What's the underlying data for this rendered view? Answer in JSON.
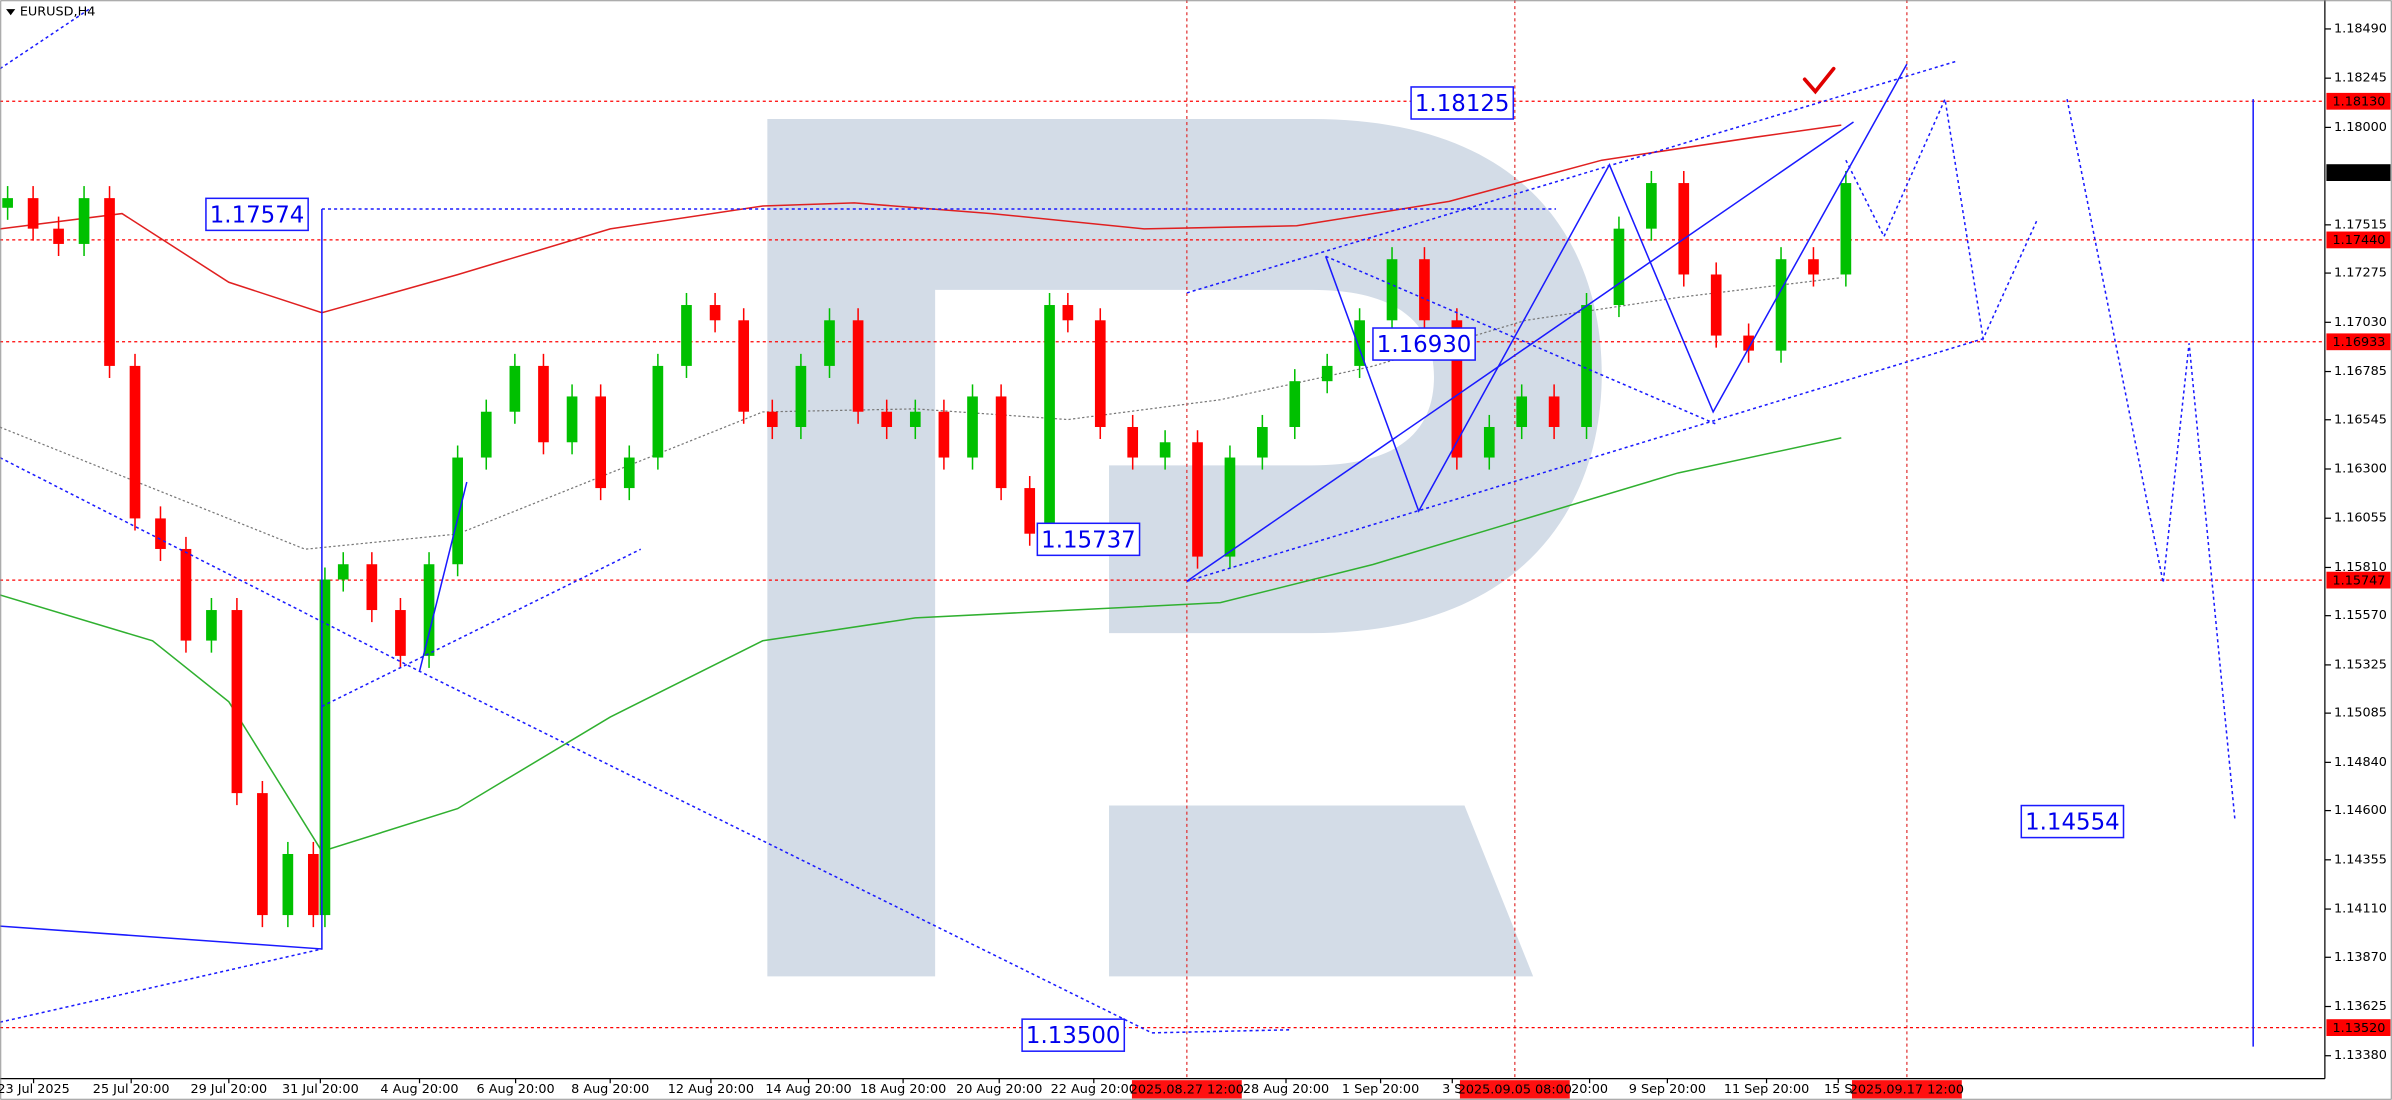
{
  "chart_data": {
    "type": "candlestick",
    "title": "EURUSD,H4",
    "open": [
      1.176,
      1.17648,
      1.17496,
      1.1742,
      1.17648,
      1.16813,
      1.16054,
      1.15902,
      1.15446,
      1.15598,
      1.14687,
      1.1408,
      1.14384,
      1.1408,
      1.1575,
      1.15826,
      1.15598,
      1.1537,
      1.15826,
      1.16357,
      1.16585,
      1.16813,
      1.16433,
      1.16661,
      1.16205,
      1.16357,
      1.16813,
      1.17116,
      1.1704,
      1.16585,
      1.16509,
      1.16813,
      1.1704,
      1.16585,
      1.16509,
      1.16585,
      1.16357,
      1.16661,
      1.16205,
      1.15978,
      1.17116,
      1.1704,
      1.16509,
      1.16357,
      1.16433,
      1.15864,
      1.16357,
      1.16509,
      1.16737,
      1.16813,
      1.1704,
      1.17344,
      1.1704,
      1.16357,
      1.16509,
      1.16661,
      1.16509,
      1.17116,
      1.17496,
      1.17723,
      1.17268,
      1.16964,
      1.16889,
      1.17344,
      1.17268
    ],
    "high": [
      1.17708,
      1.17708,
      1.17556,
      1.17708,
      1.17708,
      1.16873,
      1.16114,
      1.15962,
      1.15658,
      1.15658,
      1.14747,
      1.14444,
      1.14444,
      1.1581,
      1.15886,
      1.15886,
      1.15658,
      1.15886,
      1.16417,
      1.16645,
      1.16873,
      1.16873,
      1.16721,
      1.16721,
      1.16417,
      1.16873,
      1.17176,
      1.17176,
      1.171,
      1.16645,
      1.16873,
      1.171,
      1.171,
      1.16645,
      1.16645,
      1.16645,
      1.16721,
      1.16721,
      1.16265,
      1.17176,
      1.17176,
      1.171,
      1.16569,
      1.16493,
      1.16493,
      1.16417,
      1.16569,
      1.16797,
      1.16873,
      1.171,
      1.17404,
      1.17404,
      1.171,
      1.16569,
      1.16721,
      1.16721,
      1.17176,
      1.17556,
      1.17783,
      1.17783,
      1.17328,
      1.17024,
      1.17404,
      1.17404,
      1.17783
    ],
    "low": [
      1.1754,
      1.17436,
      1.1736,
      1.1736,
      1.16753,
      1.15994,
      1.15842,
      1.15386,
      1.15386,
      1.14627,
      1.1402,
      1.1402,
      1.1402,
      1.1402,
      1.1569,
      1.15538,
      1.1531,
      1.1531,
      1.15766,
      1.16297,
      1.16525,
      1.16373,
      1.16373,
      1.16145,
      1.16145,
      1.16297,
      1.16753,
      1.1698,
      1.16525,
      1.16449,
      1.16449,
      1.16753,
      1.16525,
      1.16449,
      1.16449,
      1.16297,
      1.16297,
      1.16145,
      1.15918,
      1.15918,
      1.1698,
      1.16449,
      1.16297,
      1.16297,
      1.15804,
      1.15804,
      1.16297,
      1.16449,
      1.16677,
      1.16753,
      1.1698,
      1.1698,
      1.16297,
      1.16297,
      1.16449,
      1.16449,
      1.16449,
      1.17056,
      1.17436,
      1.17208,
      1.16904,
      1.16829,
      1.16829,
      1.17208,
      1.17208
    ],
    "close": [
      1.17648,
      1.17496,
      1.1742,
      1.17648,
      1.16813,
      1.16054,
      1.15902,
      1.15446,
      1.15598,
      1.14687,
      1.1408,
      1.14384,
      1.1408,
      1.1575,
      1.15826,
      1.15598,
      1.1537,
      1.15826,
      1.16357,
      1.16585,
      1.16813,
      1.16433,
      1.16661,
      1.16205,
      1.16357,
      1.16813,
      1.17116,
      1.1704,
      1.16585,
      1.16509,
      1.16813,
      1.1704,
      1.16585,
      1.16509,
      1.16585,
      1.16357,
      1.16661,
      1.16205,
      1.15978,
      1.17116,
      1.1704,
      1.16509,
      1.16357,
      1.16433,
      1.15864,
      1.16357,
      1.16509,
      1.16737,
      1.16813,
      1.1704,
      1.17344,
      1.1704,
      1.16357,
      1.16509,
      1.16661,
      1.16509,
      1.17116,
      1.17496,
      1.17723,
      1.17268,
      1.16964,
      1.16889,
      1.17344,
      1.17268,
      1.17723
    ],
    "up_color": "#00c000",
    "down_color": "#ff0000",
    "ylim": [
      1.13266,
      1.18634
    ],
    "yticks": [
      {
        "value": 1.1849,
        "label": "1.18490"
      },
      1.18245,
      {
        "value": 1.18,
        "label": "1.18000"
      },
      1.17515,
      1.17275,
      {
        "value": 1.1703,
        "label": "1.17030"
      },
      1.16785,
      1.16545,
      {
        "value": 1.163,
        "label": "1.16300"
      },
      {
        "value": 1.16055,
        "label": "1.16055"
      },
      {
        "value": 1.1581,
        "label": "1.15810"
      },
      {
        "value": 1.1557,
        "label": "1.15570"
      },
      1.15325,
      1.15085,
      {
        "value": 1.1484,
        "label": "1.14840"
      },
      {
        "value": 1.146,
        "label": "1.14600"
      },
      1.14355,
      {
        "value": 1.1411,
        "label": "1.14110"
      },
      {
        "value": 1.1387,
        "label": "1.13870"
      },
      1.13625,
      {
        "value": 1.1338,
        "label": "1.13380"
      }
    ],
    "xtick_labels": [
      "23 Jul 2025",
      "25 Jul 20:00",
      "29 Jul 20:00",
      "31 Jul 20:00",
      "4 Aug 20:00",
      "6 Aug 20:00",
      "8 Aug 20:00",
      "12 Aug 20:00",
      "14 Aug 20:00",
      "18 Aug 20:00",
      "20 Aug 20:00",
      "22 Aug 20:00",
      "28 Aug 20:00",
      "1 Sep 20:00",
      "3 S",
      "20:00",
      "9 Sep 20:00",
      "11 Sep 20:00",
      "15 S"
    ],
    "time_markers": [
      "2025.08.27 12:00",
      "2025.09.05 08:00",
      "2025.09.17 12:00"
    ],
    "levels": [
      {
        "value": 1.1813,
        "label": "1.18130"
      },
      {
        "value": 1.1744,
        "label": "1.17440"
      },
      1.16933,
      1.15747,
      {
        "value": 1.1352,
        "label": "1.13520"
      }
    ],
    "level_color": "#ff0000",
    "price_line": 1.17775,
    "annotations": [
      "1.17574",
      "1.18125",
      "1.16930",
      "1.15737",
      "1.13500",
      "1.14554"
    ]
  }
}
